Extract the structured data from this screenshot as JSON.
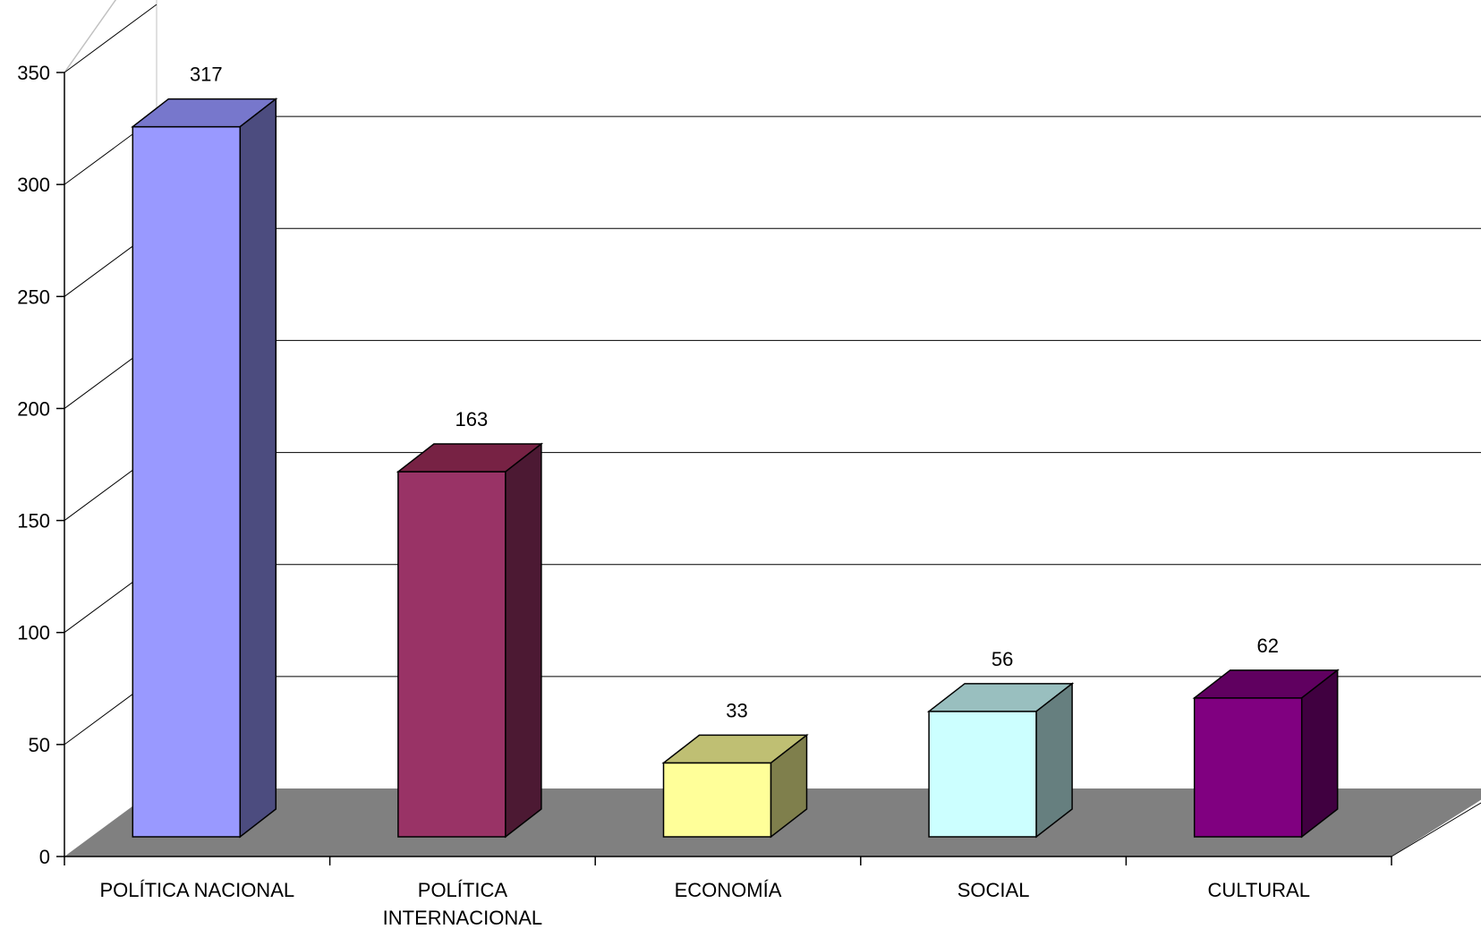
{
  "chart_data": {
    "type": "bar",
    "title": "",
    "xlabel": "",
    "ylabel": "",
    "ylim": [
      0,
      350
    ],
    "yticks": [
      0,
      50,
      100,
      150,
      200,
      250,
      300,
      350
    ],
    "grid": true,
    "three_d": true,
    "categories": [
      [
        "POLÍTICA NACIONAL"
      ],
      [
        "POLÍTICA",
        "INTERNACIONAL"
      ],
      [
        "ECONOMÍA"
      ],
      [
        "SOCIAL"
      ],
      [
        "CULTURAL"
      ]
    ],
    "values": [
      317,
      163,
      33,
      56,
      62
    ],
    "colors": {
      "front": [
        "#9999ff",
        "#993366",
        "#ffff99",
        "#ccffff",
        "#800080"
      ],
      "top": [
        "#7777cc",
        "#772244",
        "#bfbf73",
        "#99bfbf",
        "#600060"
      ],
      "side": [
        "#4c4c7f",
        "#4c1933",
        "#7f7f4c",
        "#667f7f",
        "#400040"
      ],
      "floor": "#808080",
      "gridline": "#000000"
    }
  }
}
